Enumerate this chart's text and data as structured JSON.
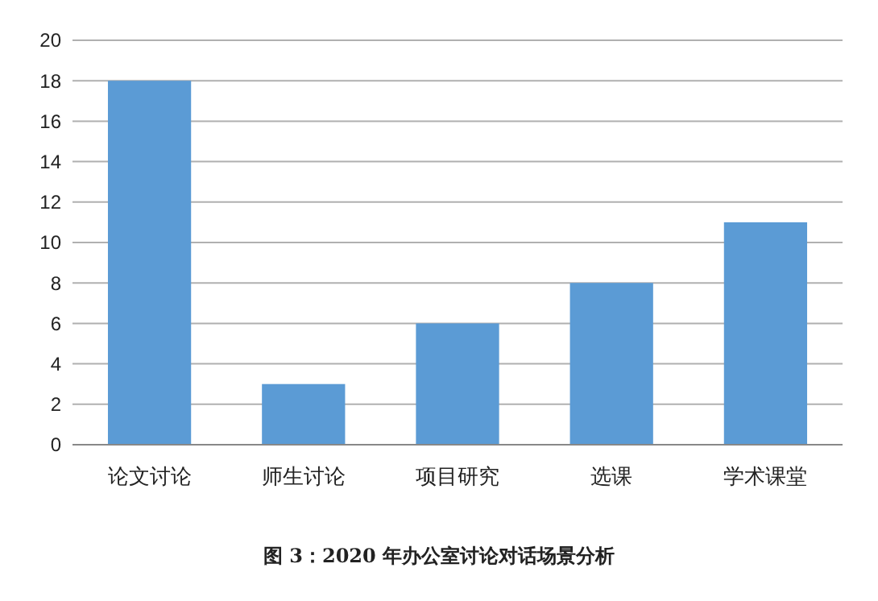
{
  "chart_data": {
    "type": "bar",
    "title": "图 3：2020 年办公室讨论对话场景分析",
    "categories": [
      "论文讨论",
      "师生讨论",
      "项目研究",
      "选课",
      "学术课堂"
    ],
    "values": [
      18,
      3,
      6,
      8,
      11
    ],
    "color": "#5b9bd5",
    "ylim": [
      0,
      20
    ],
    "yticks": [
      0,
      2,
      4,
      6,
      8,
      10,
      12,
      14,
      16,
      18,
      20
    ],
    "grid": "y"
  }
}
